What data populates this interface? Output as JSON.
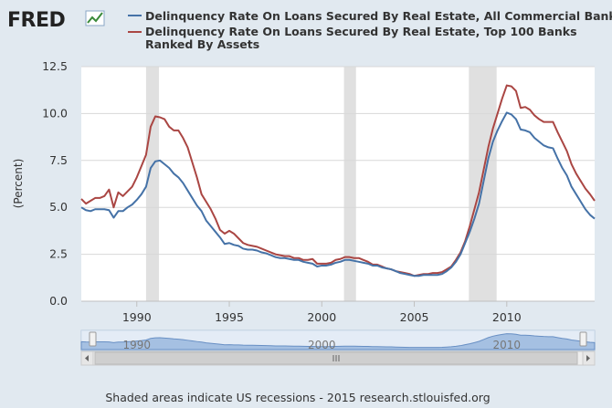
{
  "logo": {
    "text": "FRED"
  },
  "footer": {
    "text": "Shaded areas indicate US recessions - 2015 research.stlouisfed.org"
  },
  "colors": {
    "series1": "#4572a7",
    "series2": "#aa4643",
    "recession": "#e0e0e0",
    "navigator_fill": "#c6d9ef"
  },
  "chart_data": {
    "type": "line",
    "ylabel": "(Percent)",
    "ylim": [
      0,
      12.5
    ],
    "yticks": [
      "0.0",
      "2.5",
      "5.0",
      "7.5",
      "10.0",
      "12.5"
    ],
    "xlim": [
      1987.0,
      2014.75
    ],
    "xticks": [
      "1990",
      "1995",
      "2000",
      "2005",
      "2010"
    ],
    "grid": true,
    "legend_placement": "top",
    "recessions": [
      [
        1990.5,
        1991.2
      ],
      [
        2001.2,
        2001.85
      ],
      [
        2007.95,
        2009.45
      ]
    ],
    "x": [
      1987.0,
      1987.25,
      1987.5,
      1987.75,
      1988.0,
      1988.25,
      1988.5,
      1988.75,
      1989.0,
      1989.25,
      1989.5,
      1989.75,
      1990.0,
      1990.25,
      1990.5,
      1990.75,
      1991.0,
      1991.25,
      1991.5,
      1991.75,
      1992.0,
      1992.25,
      1992.5,
      1992.75,
      1993.0,
      1993.25,
      1993.5,
      1993.75,
      1994.0,
      1994.25,
      1994.5,
      1994.75,
      1995.0,
      1995.25,
      1995.5,
      1995.75,
      1996.0,
      1996.25,
      1996.5,
      1996.75,
      1997.0,
      1997.25,
      1997.5,
      1997.75,
      1998.0,
      1998.25,
      1998.5,
      1998.75,
      1999.0,
      1999.25,
      1999.5,
      1999.75,
      2000.0,
      2000.25,
      2000.5,
      2000.75,
      2001.0,
      2001.25,
      2001.5,
      2001.75,
      2002.0,
      2002.25,
      2002.5,
      2002.75,
      2003.0,
      2003.25,
      2003.5,
      2003.75,
      2004.0,
      2004.25,
      2004.5,
      2004.75,
      2005.0,
      2005.25,
      2005.5,
      2005.75,
      2006.0,
      2006.25,
      2006.5,
      2006.75,
      2007.0,
      2007.25,
      2007.5,
      2007.75,
      2008.0,
      2008.25,
      2008.5,
      2008.75,
      2009.0,
      2009.25,
      2009.5,
      2009.75,
      2010.0,
      2010.25,
      2010.5,
      2010.75,
      2011.0,
      2011.25,
      2011.5,
      2011.75,
      2012.0,
      2012.25,
      2012.5,
      2012.75,
      2013.0,
      2013.25,
      2013.5,
      2013.75,
      2014.0,
      2014.25,
      2014.5,
      2014.75
    ],
    "series": [
      {
        "name": "Delinquency Rate On Loans Secured By Real Estate, All Commercial Banks",
        "color": "#4572a7",
        "values": [
          5.0,
          4.85,
          4.8,
          4.9,
          4.9,
          4.9,
          4.85,
          4.45,
          4.8,
          4.8,
          5.0,
          5.15,
          5.4,
          5.7,
          6.1,
          7.1,
          7.45,
          7.5,
          7.3,
          7.1,
          6.8,
          6.6,
          6.3,
          5.9,
          5.5,
          5.1,
          4.8,
          4.3,
          4.0,
          3.7,
          3.4,
          3.05,
          3.1,
          3.0,
          2.95,
          2.8,
          2.75,
          2.75,
          2.7,
          2.6,
          2.55,
          2.45,
          2.35,
          2.3,
          2.3,
          2.25,
          2.2,
          2.2,
          2.1,
          2.05,
          2.0,
          1.85,
          1.9,
          1.9,
          1.95,
          2.05,
          2.1,
          2.2,
          2.2,
          2.15,
          2.1,
          2.05,
          2.0,
          1.9,
          1.9,
          1.8,
          1.75,
          1.7,
          1.6,
          1.5,
          1.45,
          1.4,
          1.35,
          1.35,
          1.4,
          1.4,
          1.4,
          1.4,
          1.45,
          1.6,
          1.8,
          2.1,
          2.5,
          3.1,
          3.7,
          4.4,
          5.2,
          6.4,
          7.6,
          8.5,
          9.1,
          9.6,
          10.05,
          9.95,
          9.7,
          9.15,
          9.1,
          9.0,
          8.7,
          8.5,
          8.3,
          8.2,
          8.15,
          7.6,
          7.1,
          6.7,
          6.1,
          5.7,
          5.3,
          4.9,
          4.6,
          4.4
        ]
      },
      {
        "name": "Delinquency Rate On Loans Secured By Real Estate, Top 100 Banks Ranked By Assets",
        "color": "#aa4643",
        "values": [
          5.45,
          5.2,
          5.35,
          5.5,
          5.5,
          5.6,
          5.95,
          5.0,
          5.8,
          5.6,
          5.85,
          6.1,
          6.6,
          7.2,
          7.8,
          9.3,
          9.85,
          9.8,
          9.7,
          9.3,
          9.1,
          9.1,
          8.7,
          8.2,
          7.4,
          6.6,
          5.7,
          5.3,
          4.9,
          4.4,
          3.8,
          3.6,
          3.75,
          3.6,
          3.35,
          3.1,
          3.0,
          2.95,
          2.9,
          2.8,
          2.7,
          2.6,
          2.5,
          2.45,
          2.4,
          2.4,
          2.3,
          2.3,
          2.2,
          2.2,
          2.25,
          2.0,
          2.0,
          2.0,
          2.05,
          2.2,
          2.25,
          2.35,
          2.35,
          2.3,
          2.3,
          2.2,
          2.1,
          1.95,
          1.95,
          1.85,
          1.75,
          1.7,
          1.6,
          1.55,
          1.5,
          1.45,
          1.35,
          1.4,
          1.45,
          1.45,
          1.5,
          1.5,
          1.55,
          1.7,
          1.85,
          2.2,
          2.6,
          3.2,
          4.0,
          4.9,
          5.8,
          7.0,
          8.2,
          9.2,
          10.0,
          10.8,
          11.5,
          11.45,
          11.2,
          10.3,
          10.35,
          10.2,
          9.9,
          9.7,
          9.55,
          9.55,
          9.55,
          9.0,
          8.5,
          8.0,
          7.3,
          6.8,
          6.4,
          6.0,
          5.7,
          5.35
        ]
      }
    ]
  }
}
